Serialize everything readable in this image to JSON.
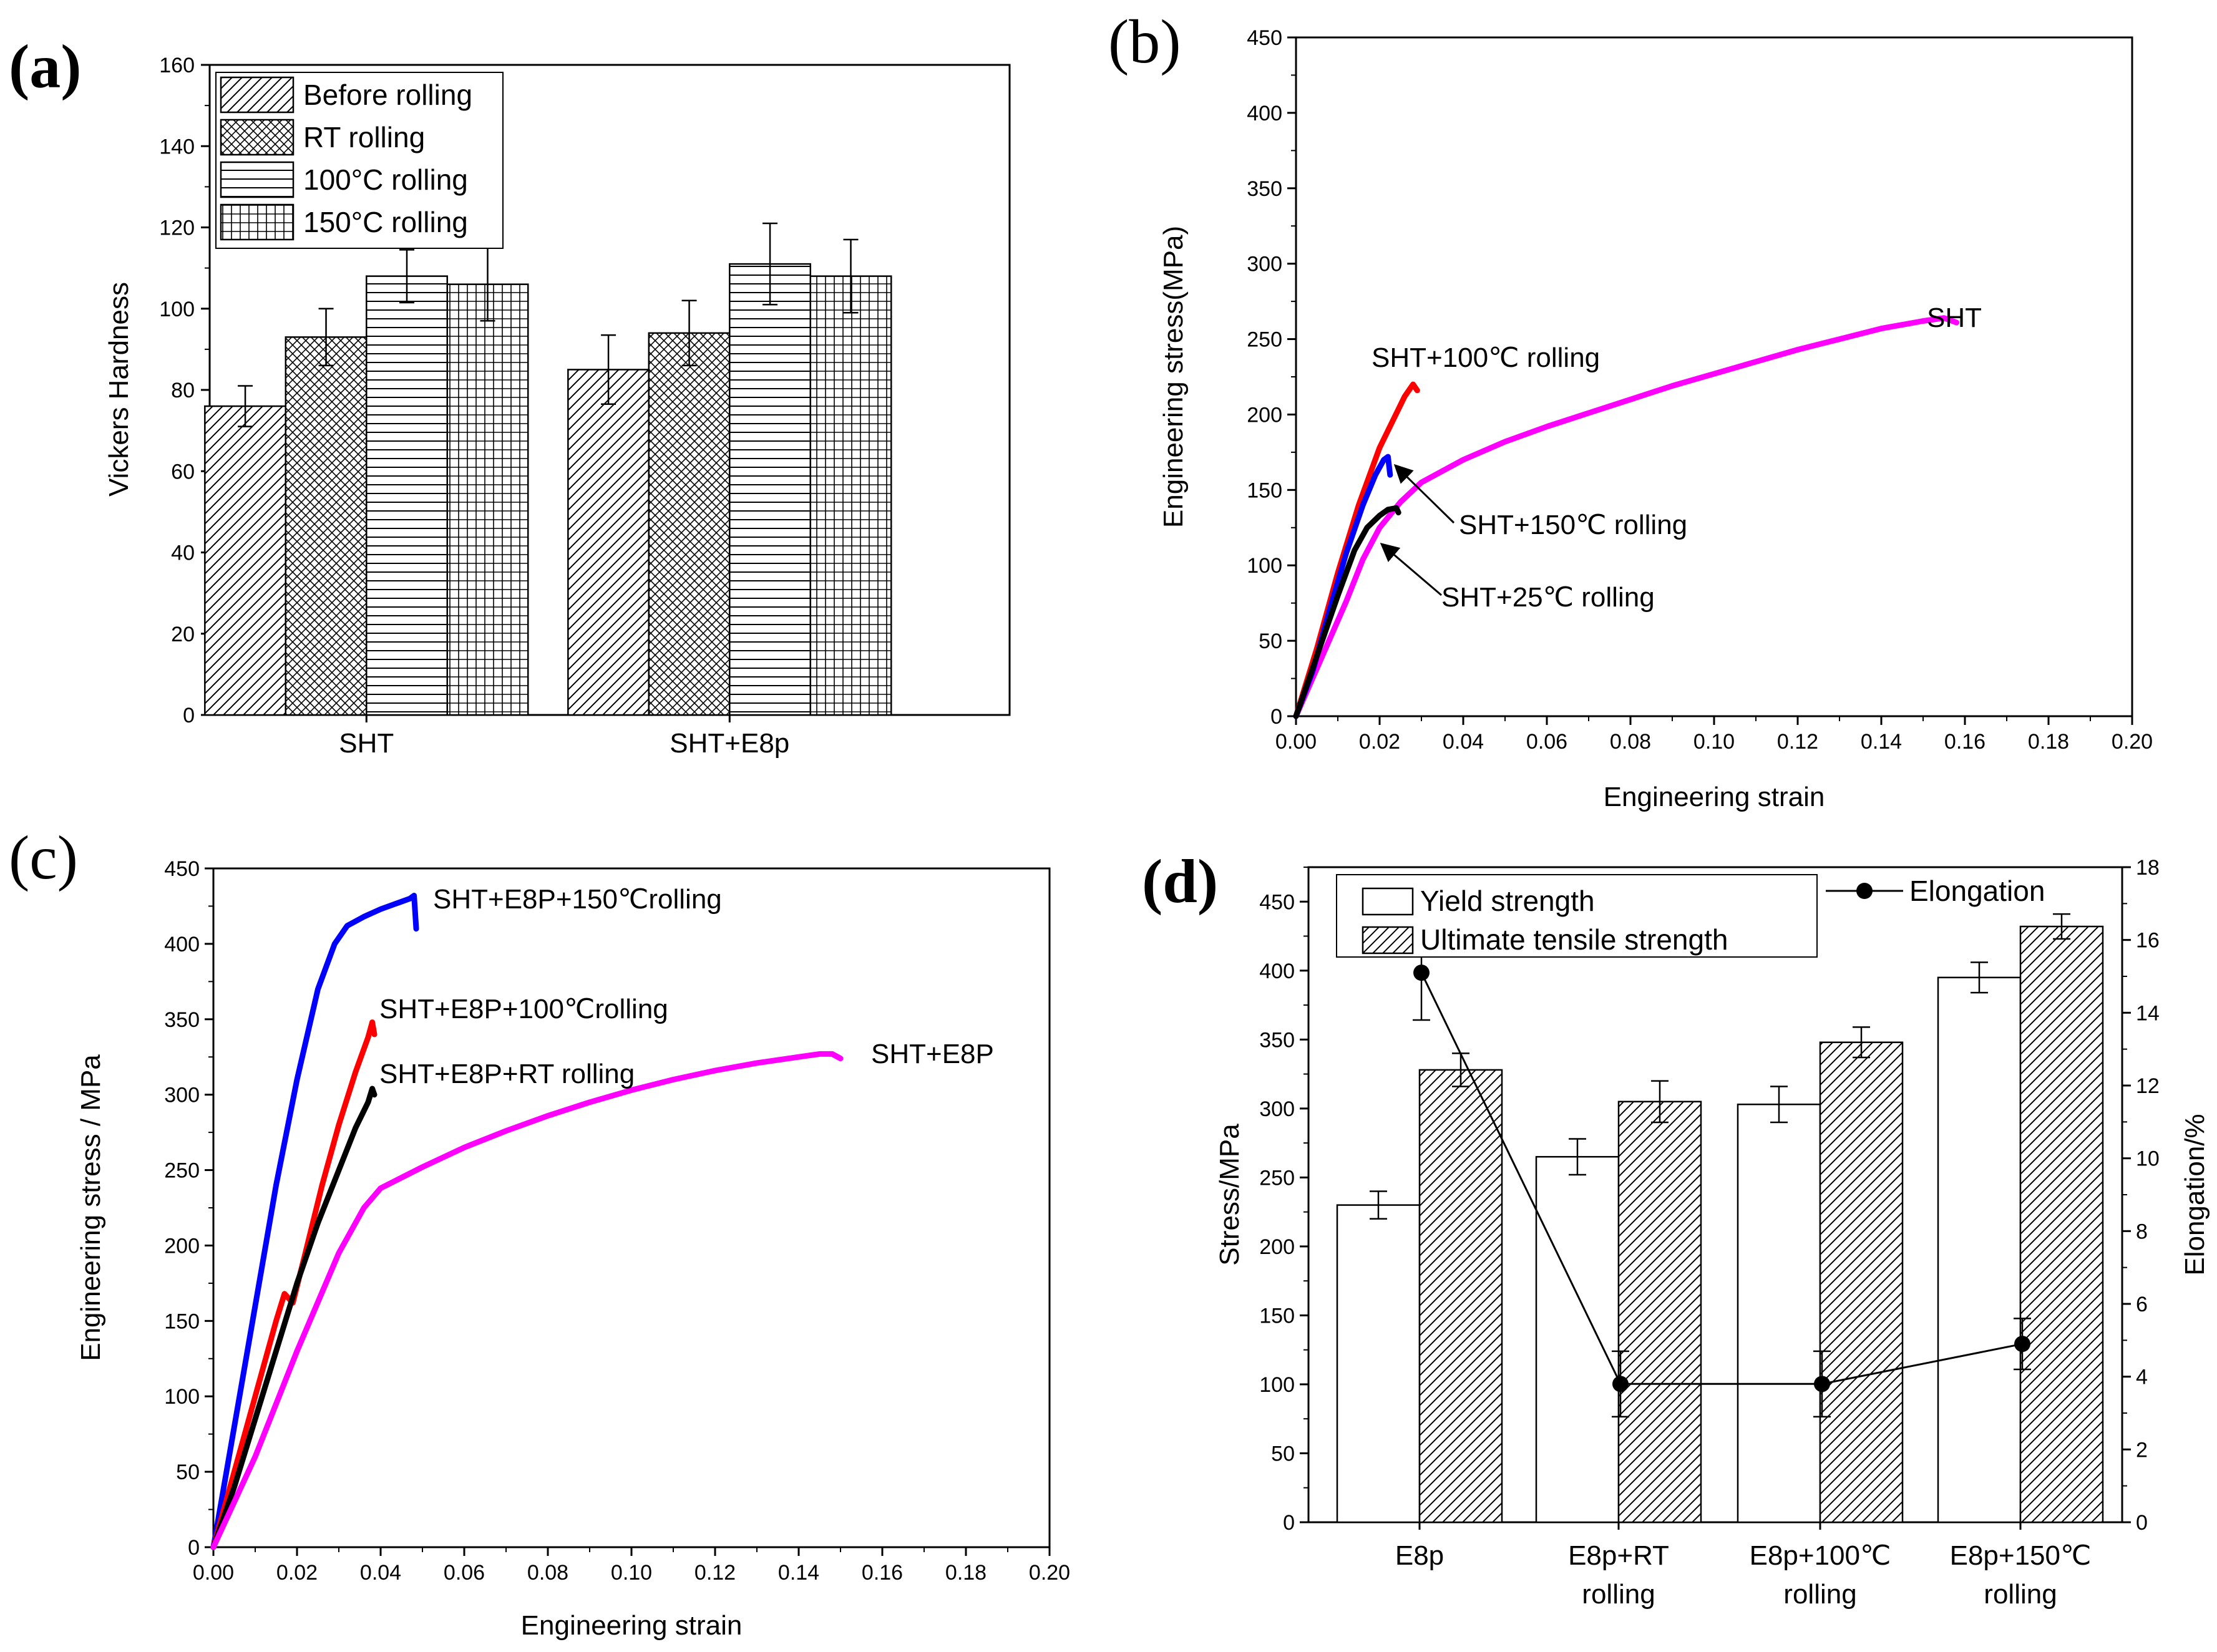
{
  "chart_data": [
    {
      "panel": "(a)",
      "type": "bar",
      "ylabel": "Vickers Hardness",
      "xlabel": "",
      "ylim": [
        0,
        160
      ],
      "yticks": [
        0,
        20,
        40,
        60,
        80,
        100,
        120,
        140,
        160
      ],
      "categories": [
        "SHT",
        "SHT+E8p"
      ],
      "legend_position": "top-left",
      "series": [
        {
          "name": "Before rolling",
          "pattern": "diagonal",
          "values": [
            76,
            85
          ],
          "errors": [
            5,
            8.5
          ]
        },
        {
          "name": "RT rolling",
          "pattern": "crosshatch",
          "values": [
            93,
            94
          ],
          "errors": [
            7,
            8
          ]
        },
        {
          "name": "100°C rolling",
          "pattern": "horizontal",
          "values": [
            108,
            111
          ],
          "errors": [
            6.5,
            10
          ]
        },
        {
          "name": "150°C rolling",
          "pattern": "grid",
          "values": [
            106,
            108
          ],
          "errors": [
            9,
            9
          ]
        }
      ]
    },
    {
      "panel": "(b)",
      "type": "line",
      "xlabel": "Engineering strain",
      "ylabel": "Engineering stress(MPa)",
      "xlim": [
        0,
        0.2
      ],
      "ylim": [
        0,
        450
      ],
      "xticks": [
        "0.00",
        "0.02",
        "0.04",
        "0.06",
        "0.08",
        "0.10",
        "0.12",
        "0.14",
        "0.16",
        "0.18",
        "0.20"
      ],
      "yticks": [
        0,
        50,
        100,
        150,
        200,
        250,
        300,
        350,
        400,
        450
      ],
      "series": [
        {
          "name": "SHT",
          "label": "SHT",
          "color": "#ff00ff",
          "points": [
            [
              0,
              0
            ],
            [
              0.006,
              38
            ],
            [
              0.012,
              76
            ],
            [
              0.016,
              104
            ],
            [
              0.02,
              125
            ],
            [
              0.025,
              142
            ],
            [
              0.03,
              155
            ],
            [
              0.04,
              170
            ],
            [
              0.05,
              182
            ],
            [
              0.06,
              192
            ],
            [
              0.07,
              201
            ],
            [
              0.08,
              210
            ],
            [
              0.09,
              219
            ],
            [
              0.1,
              227
            ],
            [
              0.11,
              235
            ],
            [
              0.12,
              243
            ],
            [
              0.13,
              250
            ],
            [
              0.14,
              257
            ],
            [
              0.15,
              262
            ],
            [
              0.155,
              264
            ],
            [
              0.158,
              261
            ]
          ]
        },
        {
          "name": "SHT+100℃ rolling",
          "label": "SHT+100℃ rolling",
          "color": "#ff0000",
          "points": [
            [
              0,
              0
            ],
            [
              0.005,
              45
            ],
            [
              0.01,
              95
            ],
            [
              0.015,
              140
            ],
            [
              0.02,
              178
            ],
            [
              0.023,
              195
            ],
            [
              0.026,
              212
            ],
            [
              0.028,
              220
            ],
            [
              0.029,
              216
            ]
          ]
        },
        {
          "name": "SHT+150℃ rolling",
          "label": "SHT+150℃ rolling",
          "color": "#0000ff",
          "points": [
            [
              0,
              0
            ],
            [
              0.004,
              30
            ],
            [
              0.008,
              70
            ],
            [
              0.012,
              108
            ],
            [
              0.016,
              140
            ],
            [
              0.019,
              160
            ],
            [
              0.021,
              170
            ],
            [
              0.022,
              172
            ],
            [
              0.0225,
              160
            ]
          ]
        },
        {
          "name": "SHT+25℃ rolling",
          "label": "SHT+25℃ rolling",
          "color": "#000000",
          "points": [
            [
              0,
              0
            ],
            [
              0.005,
              40
            ],
            [
              0.01,
              80
            ],
            [
              0.014,
              110
            ],
            [
              0.017,
              125
            ],
            [
              0.02,
              133
            ],
            [
              0.022,
              137
            ],
            [
              0.024,
              138
            ],
            [
              0.0245,
              135
            ]
          ]
        }
      ]
    },
    {
      "panel": "(c)",
      "type": "line",
      "xlabel": "Engineering strain",
      "ylabel": "Engineering stress / MPa",
      "xlim": [
        0,
        0.2
      ],
      "ylim": [
        0,
        450
      ],
      "xticks": [
        "0.00",
        "0.02",
        "0.04",
        "0.06",
        "0.08",
        "0.10",
        "0.12",
        "0.14",
        "0.16",
        "0.18",
        "0.20"
      ],
      "yticks": [
        0,
        50,
        100,
        150,
        200,
        250,
        300,
        350,
        400,
        450
      ],
      "series": [
        {
          "name": "SHT+E8P+150℃rolling",
          "label": "SHT+E8P+150℃rolling",
          "color": "#0000ff",
          "points": [
            [
              0,
              0
            ],
            [
              0.005,
              80
            ],
            [
              0.01,
              160
            ],
            [
              0.015,
              240
            ],
            [
              0.02,
              310
            ],
            [
              0.025,
              370
            ],
            [
              0.029,
              400
            ],
            [
              0.032,
              412
            ],
            [
              0.036,
              418
            ],
            [
              0.04,
              423
            ],
            [
              0.044,
              427
            ],
            [
              0.047,
              430
            ],
            [
              0.048,
              432
            ],
            [
              0.0485,
              410
            ]
          ]
        },
        {
          "name": "SHT+E8P+100℃rolling",
          "label": "SHT+E8P+100℃rolling",
          "color": "#ff0000",
          "points": [
            [
              0,
              0
            ],
            [
              0.005,
              50
            ],
            [
              0.01,
              100
            ],
            [
              0.015,
              150
            ],
            [
              0.017,
              168
            ],
            [
              0.019,
              162
            ],
            [
              0.022,
              195
            ],
            [
              0.026,
              240
            ],
            [
              0.03,
              280
            ],
            [
              0.034,
              315
            ],
            [
              0.037,
              338
            ],
            [
              0.038,
              348
            ],
            [
              0.0385,
              340
            ]
          ]
        },
        {
          "name": "SHT+E8P+RT rolling",
          "label": "SHT+E8P+RT rolling",
          "color": "#000000",
          "points": [
            [
              0,
              0
            ],
            [
              0.005,
              40
            ],
            [
              0.01,
              85
            ],
            [
              0.015,
              130
            ],
            [
              0.02,
              175
            ],
            [
              0.025,
              215
            ],
            [
              0.03,
              250
            ],
            [
              0.034,
              278
            ],
            [
              0.037,
              295
            ],
            [
              0.038,
              304
            ],
            [
              0.0385,
              300
            ]
          ]
        },
        {
          "name": "SHT+E8P",
          "label": "SHT+E8P",
          "color": "#ff00ff",
          "points": [
            [
              0,
              0
            ],
            [
              0.01,
              60
            ],
            [
              0.02,
              130
            ],
            [
              0.03,
              195
            ],
            [
              0.036,
              225
            ],
            [
              0.04,
              238
            ],
            [
              0.05,
              252
            ],
            [
              0.06,
              265
            ],
            [
              0.07,
              276
            ],
            [
              0.08,
              286
            ],
            [
              0.09,
              295
            ],
            [
              0.1,
              303
            ],
            [
              0.11,
              310
            ],
            [
              0.12,
              316
            ],
            [
              0.13,
              321
            ],
            [
              0.14,
              325
            ],
            [
              0.145,
              327
            ],
            [
              0.148,
              327
            ],
            [
              0.15,
              324
            ]
          ]
        }
      ]
    },
    {
      "panel": "(d)",
      "type": "bar",
      "ylabel": "Stress/MPa",
      "ylabel_right": "Elongation/%",
      "ylim": [
        0,
        475
      ],
      "ylim_right": [
        0,
        18
      ],
      "yticks": [
        0,
        50,
        100,
        150,
        200,
        250,
        300,
        350,
        400,
        450
      ],
      "yticks_right": [
        0,
        2,
        4,
        6,
        8,
        10,
        12,
        14,
        16,
        18
      ],
      "categories": [
        [
          "E8p"
        ],
        [
          "E8p+RT",
          "rolling"
        ],
        [
          "E8p+100℃",
          "rolling"
        ],
        [
          "E8p+150℃",
          "rolling"
        ]
      ],
      "legend_position": "top",
      "series": [
        {
          "name": "Yield strength",
          "pattern": "none",
          "values": [
            230,
            265,
            303,
            395
          ],
          "errors": [
            10,
            13,
            13,
            11
          ]
        },
        {
          "name": "Ultimate tensile strength",
          "pattern": "diagonal",
          "values": [
            328,
            305,
            348,
            432
          ],
          "errors": [
            12,
            15,
            11,
            9
          ]
        }
      ],
      "line_series": {
        "name": "Elongation",
        "axis": "right",
        "values": [
          15.1,
          3.8,
          3.8,
          4.9
        ],
        "errors": [
          1.3,
          0.9,
          0.9,
          0.7
        ]
      }
    }
  ],
  "panel_labels": {
    "a": "(a)",
    "b": "(b)",
    "c": "(c)",
    "d": "(d)"
  }
}
